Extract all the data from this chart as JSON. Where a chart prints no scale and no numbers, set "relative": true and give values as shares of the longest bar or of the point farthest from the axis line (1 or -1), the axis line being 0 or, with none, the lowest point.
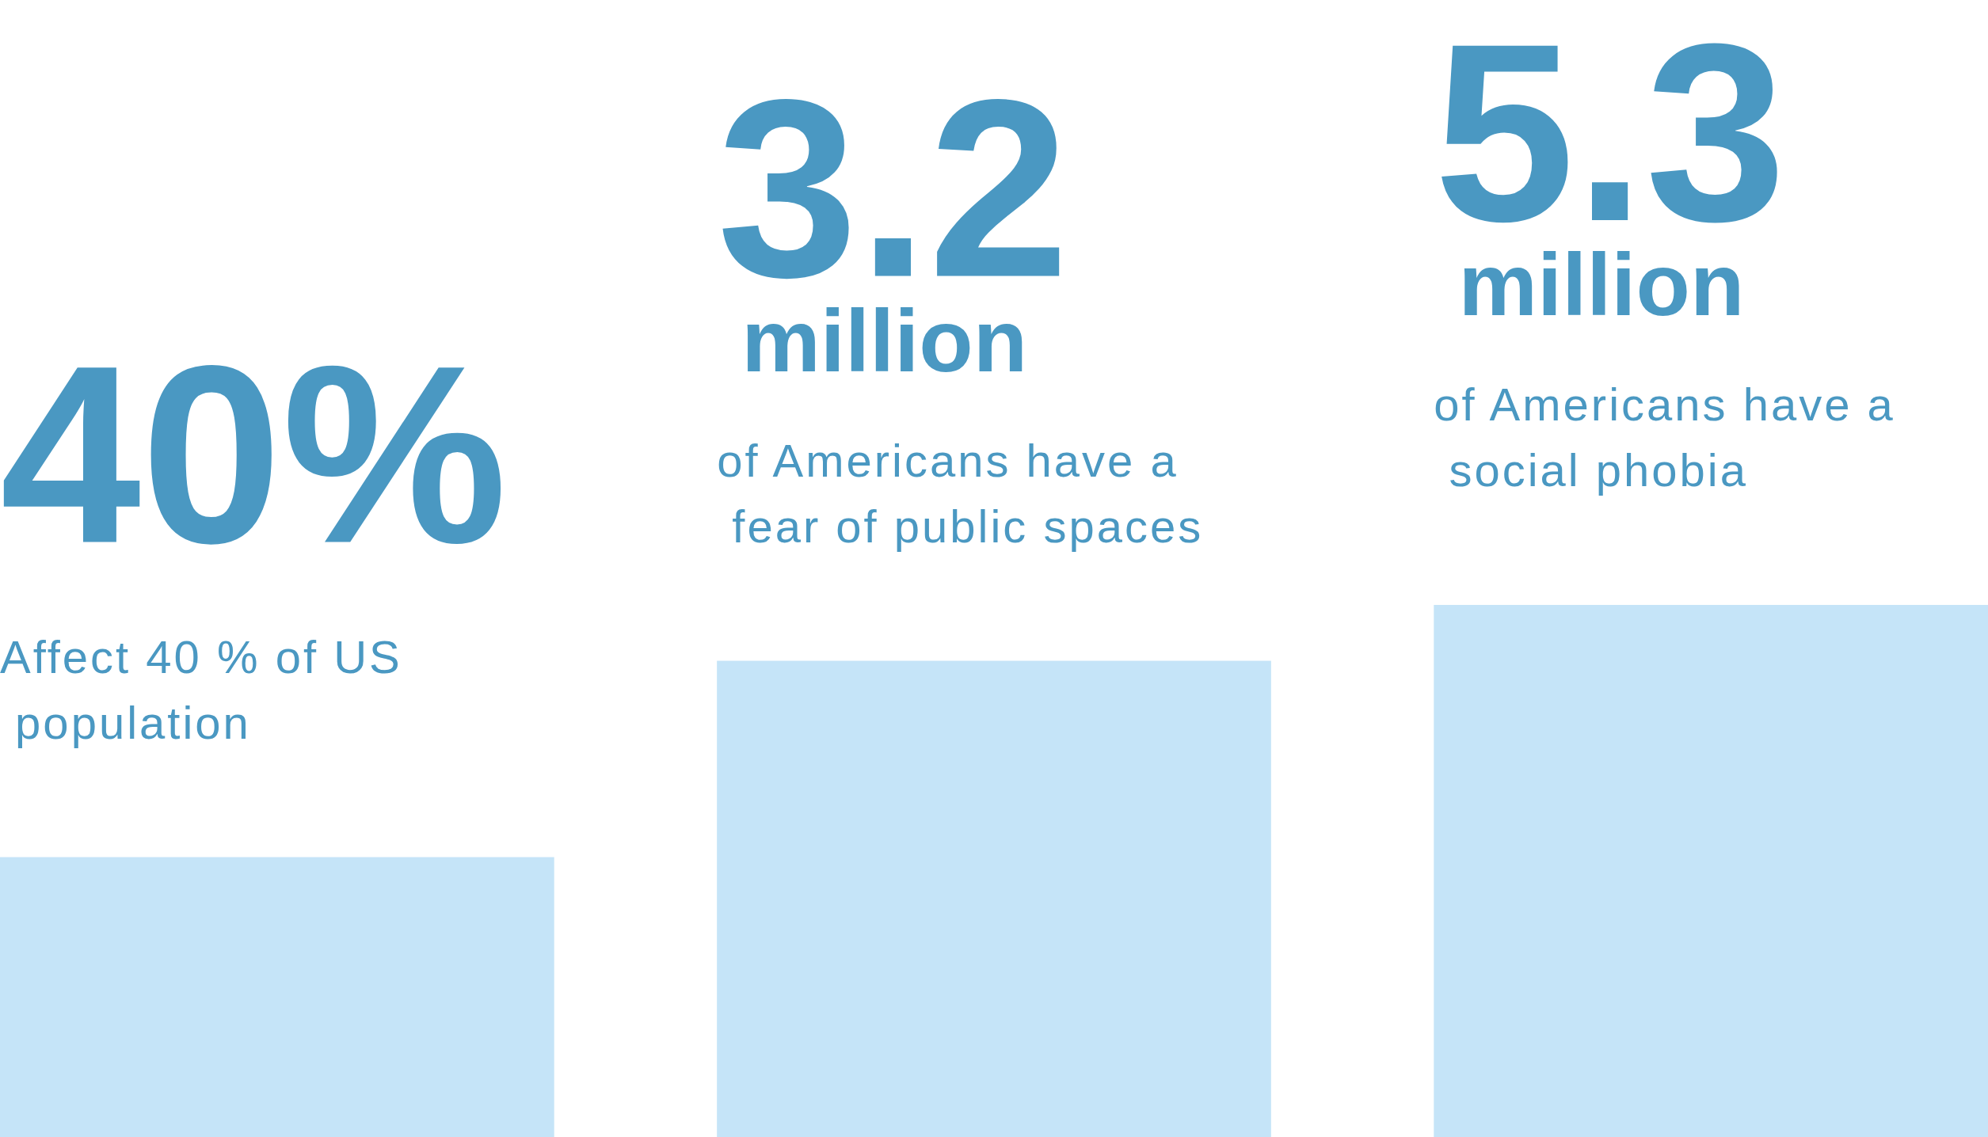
{
  "chart_data": {
    "type": "bar",
    "relative": true,
    "categories": [
      null,
      null,
      null
    ],
    "values": [
      0.526,
      0.895,
      1
    ],
    "annotations": [
      "40%",
      "Affect 40 % of US population",
      "3.2 million",
      "of Americans have a fear of public spaces",
      "5.3 million",
      "of Americans have a social phobia"
    ],
    "color": "#c5e4f8"
  }
}
